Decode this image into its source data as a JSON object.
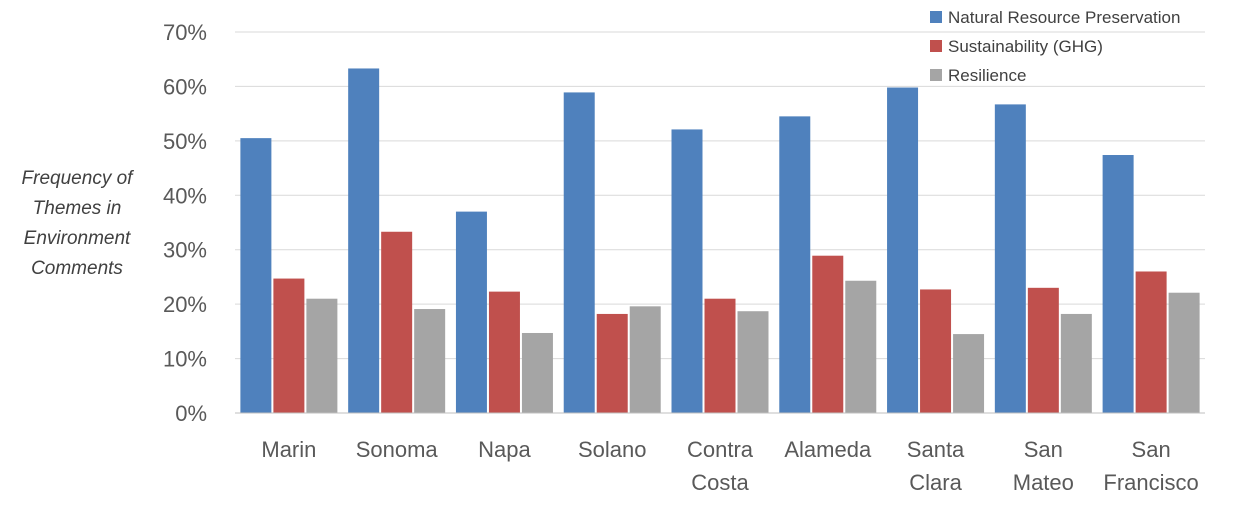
{
  "chart_data": {
    "type": "bar",
    "categories": [
      [
        "Marin"
      ],
      [
        "Sonoma"
      ],
      [
        "Napa"
      ],
      [
        "Solano"
      ],
      [
        "Contra",
        "Costa"
      ],
      [
        "Alameda"
      ],
      [
        "Santa",
        "Clara"
      ],
      [
        "San",
        "Mateo"
      ],
      [
        "San",
        "Francisco"
      ]
    ],
    "series": [
      {
        "name": "Natural Resource Preservation",
        "color": "#4f81bd",
        "values": [
          50.5,
          63.3,
          37.0,
          58.9,
          52.1,
          54.5,
          59.8,
          56.7,
          47.4
        ]
      },
      {
        "name": "Sustainability (GHG)",
        "color": "#c0504d",
        "values": [
          24.7,
          33.3,
          22.3,
          18.2,
          21.0,
          28.9,
          22.7,
          23.0,
          26.0
        ]
      },
      {
        "name": "Resilience",
        "color": "#a5a5a5",
        "values": [
          21.0,
          19.1,
          14.7,
          19.6,
          18.7,
          24.3,
          14.5,
          18.2,
          22.1
        ]
      }
    ],
    "yticks": [
      "0%",
      "10%",
      "20%",
      "30%",
      "40%",
      "50%",
      "60%",
      "70%"
    ],
    "ylim": [
      0,
      70
    ],
    "ylabel": [
      "Frequency of",
      "Themes in",
      "Environment",
      "Comments"
    ],
    "xlabel": "",
    "title": "",
    "grid": true,
    "legend_position": "top-right"
  }
}
